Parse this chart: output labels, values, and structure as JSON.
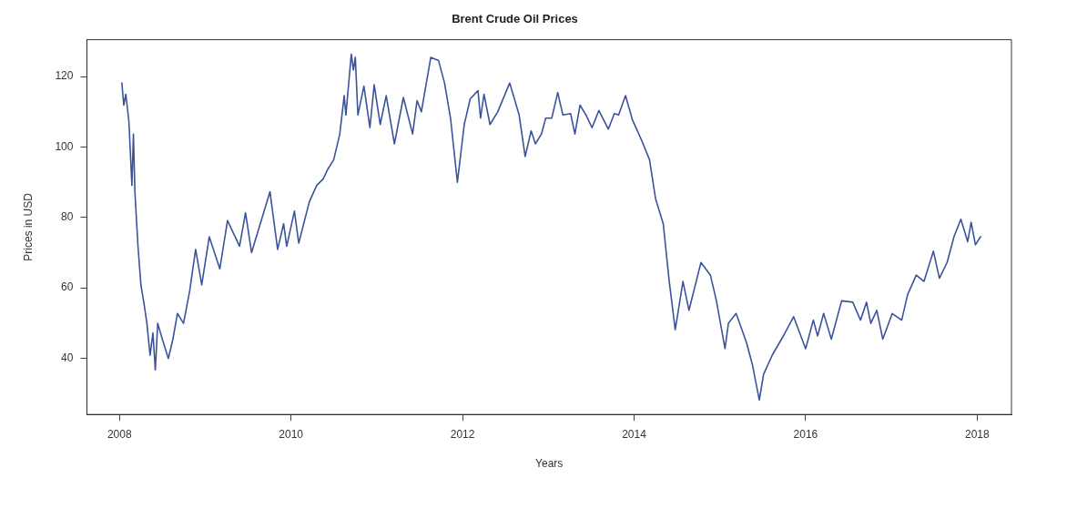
{
  "chart_data": {
    "type": "line",
    "title": "Brent Crude Oil Prices",
    "xlabel": "Years",
    "ylabel": "Prices in USD",
    "xlim": [
      2007.62,
      2018.4
    ],
    "xticks": [
      2008,
      2010,
      2012,
      2014,
      2016,
      2018
    ],
    "ylim": [
      24,
      130.5
    ],
    "yticks": [
      40,
      60,
      80,
      100,
      120
    ],
    "grid": false,
    "legend": false,
    "marker": "none",
    "line_style": "solid",
    "series": [
      {
        "color": "#3a539b",
        "x": [
          2008.028,
          2008.05,
          2008.074,
          2008.11,
          2008.145,
          2008.163,
          2008.18,
          2008.216,
          2008.25,
          2008.287,
          2008.32,
          2008.357,
          2008.39,
          2008.418,
          2008.446,
          2008.5,
          2008.57,
          2008.623,
          2008.676,
          2008.747,
          2008.818,
          2008.888,
          2008.959,
          2009.047,
          2009.17,
          2009.26,
          2009.4,
          2009.47,
          2009.54,
          2009.755,
          2009.844,
          2009.914,
          2009.95,
          2010.04,
          2010.09,
          2010.215,
          2010.3,
          2010.375,
          2010.427,
          2010.498,
          2010.569,
          2010.62,
          2010.64,
          2010.703,
          2010.728,
          2010.75,
          2010.78,
          2010.85,
          2010.92,
          2010.97,
          2011.04,
          2011.11,
          2011.206,
          2011.31,
          2011.418,
          2011.47,
          2011.52,
          2011.63,
          2011.72,
          2011.79,
          2011.86,
          2011.94,
          2012.02,
          2012.09,
          2012.18,
          2012.21,
          2012.25,
          2012.32,
          2012.41,
          2012.55,
          2012.66,
          2012.73,
          2012.8,
          2012.85,
          2012.92,
          2012.97,
          2013.04,
          2013.11,
          2013.17,
          2013.26,
          2013.31,
          2013.37,
          2013.44,
          2013.51,
          2013.59,
          2013.7,
          2013.77,
          2013.82,
          2013.9,
          2013.98,
          2014.09,
          2014.18,
          2014.25,
          2014.34,
          2014.41,
          2014.48,
          2014.57,
          2014.64,
          2014.78,
          2014.89,
          2014.96,
          2015.06,
          2015.1,
          2015.19,
          2015.31,
          2015.38,
          2015.46,
          2015.51,
          2015.61,
          2015.74,
          2015.86,
          2016.0,
          2016.09,
          2016.14,
          2016.21,
          2016.3,
          2016.42,
          2016.55,
          2016.64,
          2016.71,
          2016.76,
          2016.83,
          2016.9,
          2017.01,
          2017.12,
          2017.19,
          2017.29,
          2017.38,
          2017.49,
          2017.56,
          2017.65,
          2017.73,
          2017.81,
          2017.89,
          2017.93,
          2017.98,
          2018.04
        ],
        "values": [
          118.2,
          111.9,
          115,
          107.3,
          89.1,
          103.7,
          87.3,
          71.8,
          60.8,
          55.4,
          49.9,
          40.8,
          47.2,
          36.7,
          49.9,
          45.4,
          39.9,
          45.4,
          52.7,
          49.9,
          59,
          70.9,
          60.8,
          74.5,
          65.4,
          79.1,
          71.8,
          81.3,
          70,
          87.3,
          70.9,
          78.2,
          71.8,
          81.8,
          72.7,
          84.5,
          89.1,
          90.9,
          93.6,
          96.4,
          103.7,
          114.6,
          109.1,
          126.4,
          121.9,
          125.5,
          109.1,
          117.3,
          105.5,
          117.7,
          106.4,
          114.6,
          100.9,
          114.1,
          103.7,
          113.2,
          110,
          125.5,
          124.6,
          118.2,
          108.2,
          90,
          106.4,
          113.7,
          116,
          108.2,
          115,
          106.4,
          110,
          118.2,
          109.1,
          97.3,
          104.6,
          100.9,
          103.7,
          108.2,
          108.2,
          115.5,
          109.1,
          109.5,
          103.7,
          111.9,
          109.1,
          105.5,
          110.4,
          105.1,
          109.5,
          109.1,
          114.6,
          107.8,
          101.8,
          96.4,
          85.4,
          78.2,
          61.8,
          48.1,
          61.8,
          53.6,
          67.2,
          63.6,
          56.3,
          42.7,
          49.9,
          52.7,
          44.5,
          38.1,
          28.1,
          35.4,
          40.8,
          46.3,
          51.8,
          42.7,
          50.8,
          46.3,
          52.7,
          45.4,
          56.3,
          55.9,
          50.8,
          55.9,
          49.9,
          53.6,
          45.4,
          52.7,
          50.8,
          58.1,
          63.6,
          61.8,
          70.4,
          62.7,
          67.2,
          74.5,
          79.5,
          73.1,
          78.6,
          72.2,
          74.5
        ]
      }
    ]
  }
}
